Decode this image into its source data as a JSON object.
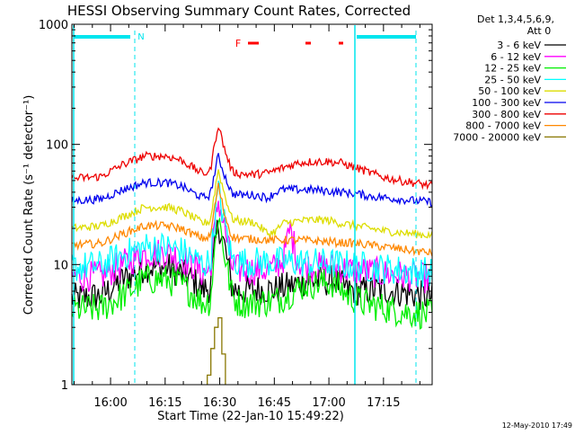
{
  "chart_data": {
    "type": "line",
    "title": "HESSI Observing Summary Count Rates, Corrected",
    "xlabel": "Start Time (22-Jan-10 15:49:22)",
    "ylabel": "Corrected Count Rate (s⁻¹ detector⁻¹)",
    "y_scale": "log",
    "ylim": [
      1,
      1000
    ],
    "xlim_minutes_after_start": [
      0,
      99
    ],
    "x_tick_labels": [
      "16:00",
      "16:15",
      "16:30",
      "16:45",
      "17:00",
      "17:15"
    ],
    "x_tick_minutes": [
      10.63,
      25.63,
      40.63,
      55.63,
      70.63,
      85.63
    ],
    "y_tick_labels": [
      "1",
      "10",
      "100",
      "1000"
    ],
    "y_tick_values": [
      1,
      10,
      100,
      1000
    ],
    "legend_header": [
      "Det 1,3,4,5,6,9,",
      "Att 0"
    ],
    "legend_placement": "top-right outside",
    "annotations": {
      "night_label": "N",
      "flare_label": "F",
      "footer_date": "12-May-2010 17:49"
    },
    "colors": {
      "cyan_marker": "#00e5ee",
      "flare_marker": "#ff0000"
    },
    "series": [
      {
        "name": "3 - 6 keV",
        "color": "#000000",
        "x": [
          0,
          8,
          14,
          20,
          26,
          30,
          33,
          36,
          38,
          40.2,
          42,
          44,
          46,
          50,
          56,
          60,
          64,
          68,
          72,
          76,
          80,
          84,
          88,
          92,
          96,
          99
        ],
        "y": [
          5.2,
          5.5,
          7.5,
          9.5,
          9.5,
          8.5,
          7.5,
          6.2,
          6.5,
          22,
          14,
          6.5,
          6.0,
          6.2,
          6.2,
          6.6,
          7.3,
          7.3,
          7.3,
          6.2,
          6.0,
          6.2,
          6.0,
          5.8,
          5.5,
          5.3
        ]
      },
      {
        "name": "6 - 12 keV",
        "color": "#ff00ff",
        "x": [
          0,
          8,
          14,
          20,
          26,
          30,
          33,
          36,
          38,
          40.2,
          42,
          44,
          46,
          50,
          54,
          56,
          58,
          60,
          62,
          64,
          68,
          72,
          76,
          80,
          84,
          88,
          92,
          96,
          99
        ],
        "y": [
          8.0,
          8.0,
          10,
          12.5,
          12.5,
          11.5,
          10,
          8.5,
          9,
          35,
          20,
          9.5,
          9.0,
          9.0,
          9.0,
          9.5,
          11,
          20,
          11,
          9.5,
          9.5,
          9.5,
          9.0,
          8.8,
          8.5,
          8.3,
          8.0,
          7.8,
          7.5
        ]
      },
      {
        "name": "12 - 25 keV",
        "color": "#00ee00",
        "x": [
          0,
          8,
          14,
          20,
          26,
          30,
          33,
          36,
          38,
          40.2,
          42,
          44,
          46,
          50,
          56,
          60,
          64,
          68,
          72,
          76,
          80,
          84,
          88,
          92,
          96,
          99
        ],
        "y": [
          4.2,
          4.3,
          5.5,
          7.5,
          7.5,
          6.8,
          5.8,
          4.8,
          5,
          27,
          12,
          5.5,
          4.8,
          4.8,
          5.0,
          5.8,
          6.8,
          7.0,
          7.0,
          5.5,
          4.8,
          4.5,
          4.2,
          4.0,
          3.9,
          3.8
        ]
      },
      {
        "name": "25 - 50 keV",
        "color": "#00ffff",
        "x": [
          0,
          8,
          14,
          20,
          26,
          30,
          33,
          36,
          38,
          40.2,
          42,
          44,
          46,
          50,
          54,
          58,
          62,
          66,
          70,
          74,
          78,
          82,
          86,
          90,
          94,
          99
        ],
        "y": [
          9.5,
          9.8,
          12,
          14,
          14,
          13,
          11.5,
          10,
          10.5,
          42,
          22,
          11,
          10.5,
          10.5,
          10.5,
          10.5,
          10.5,
          10.3,
          10.3,
          10,
          9.8,
          9.5,
          9.3,
          9.0,
          8.8,
          8.6
        ]
      },
      {
        "name": "50 - 100 keV",
        "color": "#dddd00",
        "x": [
          0,
          8,
          14,
          20,
          26,
          30,
          33,
          36,
          38,
          40.2,
          42,
          44,
          46,
          50,
          54,
          56,
          58,
          62,
          66,
          70,
          74,
          78,
          82,
          86,
          90,
          94,
          99
        ],
        "y": [
          20,
          21,
          25,
          30,
          30,
          28,
          25,
          22,
          23,
          62,
          38,
          24,
          23,
          22.5,
          18,
          19,
          22,
          23,
          23.5,
          23.5,
          22,
          21,
          20,
          19,
          18.5,
          18,
          17.5
        ]
      },
      {
        "name": "100 - 300 keV",
        "color": "#0000ee",
        "x": [
          0,
          8,
          14,
          20,
          26,
          30,
          33,
          36,
          38,
          40.2,
          42,
          44,
          46,
          50,
          54,
          56,
          58,
          62,
          66,
          70,
          74,
          78,
          82,
          86,
          90,
          94,
          99
        ],
        "y": [
          34,
          35,
          42,
          48,
          48,
          45,
          40,
          36,
          38,
          80,
          55,
          39,
          38,
          38,
          36,
          40,
          42,
          42,
          42,
          41,
          40,
          39,
          37,
          36,
          35,
          34,
          33
        ]
      },
      {
        "name": "300 - 800 keV",
        "color": "#ee0000",
        "x": [
          0,
          8,
          14,
          20,
          26,
          30,
          33,
          36,
          38,
          40.2,
          42,
          44,
          46,
          50,
          54,
          58,
          62,
          66,
          70,
          74,
          78,
          82,
          86,
          90,
          94,
          99
        ],
        "y": [
          52,
          54,
          68,
          80,
          80,
          74,
          65,
          57,
          60,
          148,
          90,
          60,
          57,
          56,
          58,
          64,
          70,
          72,
          72,
          70,
          64,
          58,
          53,
          50,
          48,
          45
        ]
      },
      {
        "name": "800 - 7000 keV",
        "color": "#ff8800",
        "x": [
          0,
          8,
          14,
          20,
          26,
          30,
          33,
          36,
          38,
          40.2,
          42,
          44,
          46,
          50,
          54,
          58,
          62,
          66,
          70,
          74,
          78,
          82,
          86,
          90,
          94,
          99
        ],
        "y": [
          14.5,
          15,
          18,
          21,
          21,
          20,
          18,
          16.5,
          17,
          46,
          26,
          17,
          16.5,
          16.3,
          16,
          16,
          16,
          15.8,
          15.5,
          15.2,
          15,
          14.5,
          14,
          13.5,
          13,
          12.5
        ]
      },
      {
        "name": "7000 - 20000 keV",
        "color": "#887700",
        "x": [
          37.2,
          37.2,
          38.2,
          38.2,
          39.2,
          39.2,
          40.2,
          40.2,
          41.2,
          41.2,
          42.2,
          42.2
        ],
        "y": [
          1,
          1.2,
          1.2,
          2.0,
          2.0,
          3.0,
          3.0,
          3.6,
          3.6,
          1.8,
          1.8,
          1
        ]
      }
    ]
  }
}
